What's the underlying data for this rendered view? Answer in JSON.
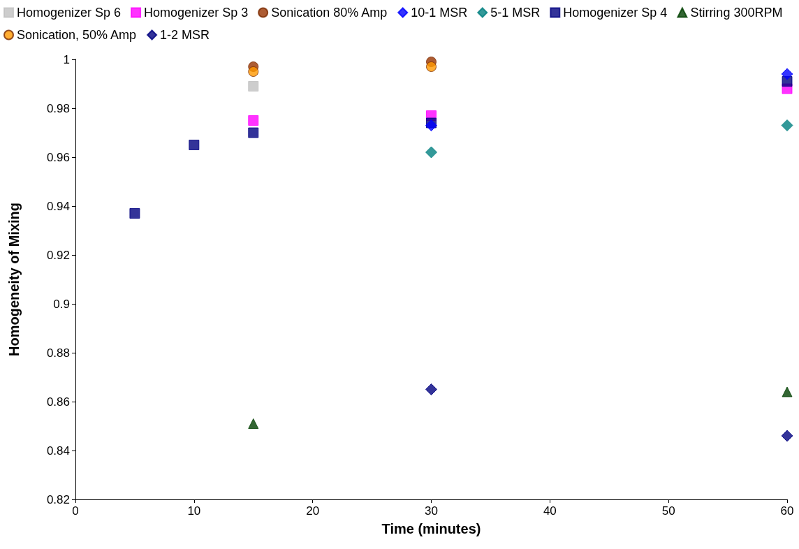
{
  "chart_data": {
    "type": "scatter",
    "xlabel": "Time (minutes)",
    "ylabel": "Homogeneity of Mixing",
    "xlim": [
      0,
      60
    ],
    "xticks": [
      0,
      10,
      20,
      30,
      40,
      50,
      60
    ],
    "ylim": [
      0.82,
      1
    ],
    "yticks": [
      0.82,
      0.84,
      0.86,
      0.88,
      0.9,
      0.92,
      0.94,
      0.96,
      0.98,
      1
    ],
    "grid": false,
    "legend": "top",
    "series": [
      {
        "name": "Homogenizer Sp 6",
        "color": "#c0c0c0",
        "marker": "square",
        "x": [
          15
        ],
        "values": [
          0.989
        ]
      },
      {
        "name": "Homogenizer Sp 3",
        "color": "#ff00ff",
        "marker": "square",
        "x": [
          15,
          30,
          60
        ],
        "values": [
          0.975,
          0.977,
          0.988
        ]
      },
      {
        "name": "Sonication 80% Amp",
        "color": "#993300",
        "marker": "circle",
        "x": [
          15,
          30
        ],
        "values": [
          0.997,
          0.999
        ]
      },
      {
        "name": "10-1 MSR",
        "color": "#0000ff",
        "marker": "diamond",
        "x": [
          30,
          60
        ],
        "values": [
          0.973,
          0.994
        ]
      },
      {
        "name": "5-1 MSR",
        "color": "#008080",
        "marker": "diamond",
        "x": [
          30,
          60
        ],
        "values": [
          0.962,
          0.973
        ]
      },
      {
        "name": "Homogenizer Sp 4",
        "color": "#000080",
        "marker": "square",
        "x": [
          5,
          10,
          15,
          30,
          60
        ],
        "values": [
          0.937,
          0.965,
          0.97,
          0.974,
          0.991
        ]
      },
      {
        "name": "Stirring 300RPM",
        "color": "#004000",
        "marker": "triangle",
        "x": [
          15,
          60
        ],
        "values": [
          0.851,
          0.864
        ]
      },
      {
        "name": "Sonication, 50% Amp",
        "color": "#ff9900",
        "marker": "circle",
        "x": [
          15,
          30
        ],
        "values": [
          0.995,
          0.997
        ]
      },
      {
        "name": "1-2 MSR",
        "color": "#000080",
        "marker": "diamond",
        "x": [
          30,
          60
        ],
        "values": [
          0.865,
          0.846
        ]
      }
    ]
  }
}
